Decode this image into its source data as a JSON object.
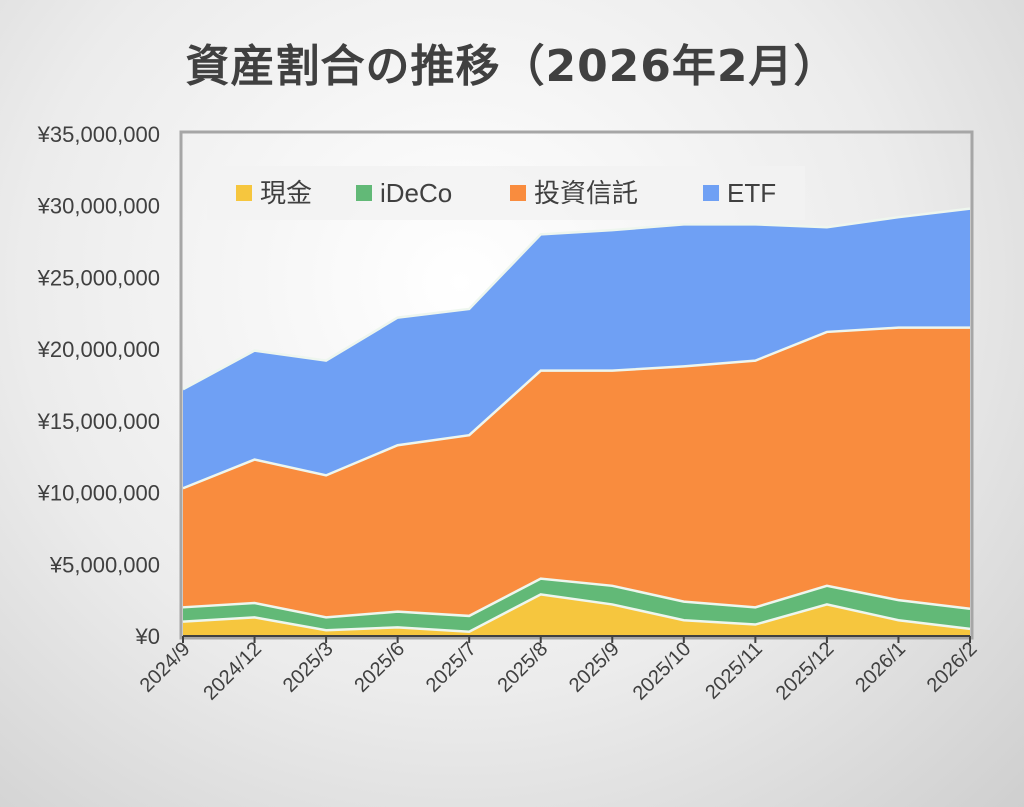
{
  "chart_data": {
    "type": "area",
    "stacked": true,
    "title": "資産割合の推移（2026年2月）",
    "xlabel": "",
    "ylabel": "",
    "categories": [
      "2024/9",
      "2024/12",
      "2025/3",
      "2025/6",
      "2025/7",
      "2025/8",
      "2025/9",
      "2025/10",
      "2025/11",
      "2025/12",
      "2026/1",
      "2026/2"
    ],
    "ylim": [
      0,
      35000000
    ],
    "yticks": [
      0,
      5000000,
      10000000,
      15000000,
      20000000,
      25000000,
      30000000,
      35000000
    ],
    "ytick_labels": [
      "¥0",
      "¥5,000,000",
      "¥10,000,000",
      "¥15,000,000",
      "¥20,000,000",
      "¥25,000,000",
      "¥30,000,000",
      "¥35,000,000"
    ],
    "grid": false,
    "legend": "top-left inside",
    "series": [
      {
        "name": "現金",
        "color": "#f6c63e",
        "values": [
          1000000,
          1300000,
          400000,
          600000,
          300000,
          2900000,
          2200000,
          1100000,
          800000,
          2200000,
          1100000,
          500000
        ]
      },
      {
        "name": "iDeCo",
        "color": "#62b977",
        "values": [
          1000000,
          1000000,
          900000,
          1100000,
          1100000,
          1100000,
          1300000,
          1300000,
          1200000,
          1300000,
          1400000,
          1400000
        ]
      },
      {
        "name": "投資信託",
        "color": "#f98c3e",
        "values": [
          8300000,
          10000000,
          9900000,
          11600000,
          12600000,
          14500000,
          15000000,
          16400000,
          17200000,
          17700000,
          19000000,
          19600000
        ]
      },
      {
        "name": "ETF",
        "color": "#6fa0f4",
        "values": [
          6900000,
          7600000,
          8000000,
          8900000,
          8800000,
          9500000,
          9800000,
          9900000,
          9500000,
          7300000,
          7700000,
          8300000
        ]
      }
    ]
  }
}
